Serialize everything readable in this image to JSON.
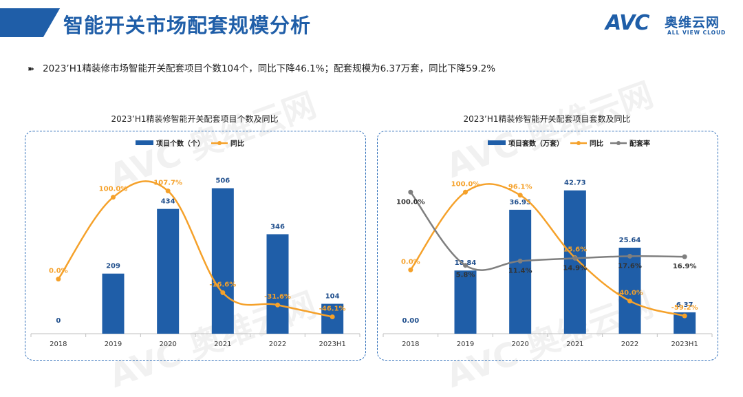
{
  "header": {
    "title": "智能开关市场配套规模分析",
    "logo_text": "AVC",
    "logo_cn": "奥维云网",
    "logo_en": "ALL VIEW CLOUD"
  },
  "summary": {
    "bullet": "➽",
    "text": "2023’H1精装修市场智能开关配套项目个数104个，同比下降46.1%；配套规模为6.37万套，同比下降59.2%"
  },
  "chart_data": [
    {
      "type": "bar",
      "title": "2023’H1精装修智能开关配套项目个数及同比",
      "categories": [
        "2018",
        "2019",
        "2020",
        "2021",
        "2022",
        "2023H1"
      ],
      "legend_position": "top-left",
      "series": [
        {
          "name": "项目个数（个）",
          "kind": "bar",
          "color": "#1f5ea8",
          "values": [
            0,
            209,
            434,
            506,
            346,
            104
          ],
          "labels": [
            "0",
            "209",
            "434",
            "506",
            "346",
            "104"
          ]
        },
        {
          "name": "同比",
          "kind": "line",
          "color": "#f5a12a",
          "values": [
            0.0,
            100.0,
            107.7,
            -16.6,
            -31.6,
            -46.1
          ],
          "labels": [
            "0.0%",
            "100.0%",
            "107.7%",
            "-16.6%",
            "-31.6%",
            "-46.1%"
          ]
        }
      ],
      "ylim_bar": [
        0,
        560
      ],
      "ylim_line": [
        -60,
        130
      ]
    },
    {
      "type": "bar",
      "title": "2023’H1精装修智能开关配套项目套数及同比",
      "categories": [
        "2018",
        "2019",
        "2020",
        "2021",
        "2022",
        "2023H1"
      ],
      "legend_position": "top-left",
      "series": [
        {
          "name": "项目套数（万套）",
          "kind": "bar",
          "color": "#1f5ea8",
          "values": [
            0.0,
            18.84,
            36.95,
            42.73,
            25.64,
            6.37
          ],
          "labels": [
            "0.00",
            "18.84",
            "36.95",
            "42.73",
            "25.64",
            "6.37"
          ]
        },
        {
          "name": "同比",
          "kind": "line",
          "color": "#f5a12a",
          "values": [
            0.0,
            100.0,
            96.1,
            15.6,
            -40.0,
            -59.2
          ],
          "labels": [
            "0.0%",
            "100.0%",
            "96.1%",
            "15.6%",
            "-40.0%",
            "-59.2%"
          ]
        },
        {
          "name": "配套率",
          "kind": "line",
          "color": "#7f7f7f",
          "values": [
            100.0,
            5.8,
            11.4,
            14.9,
            17.6,
            16.9
          ],
          "labels": [
            "100.0%",
            "5.8%",
            "11.4%",
            "14.9%",
            "17.6%",
            "16.9%"
          ]
        }
      ],
      "ylim_bar": [
        0,
        48
      ],
      "ylim_line": [
        -75,
        125
      ]
    }
  ]
}
